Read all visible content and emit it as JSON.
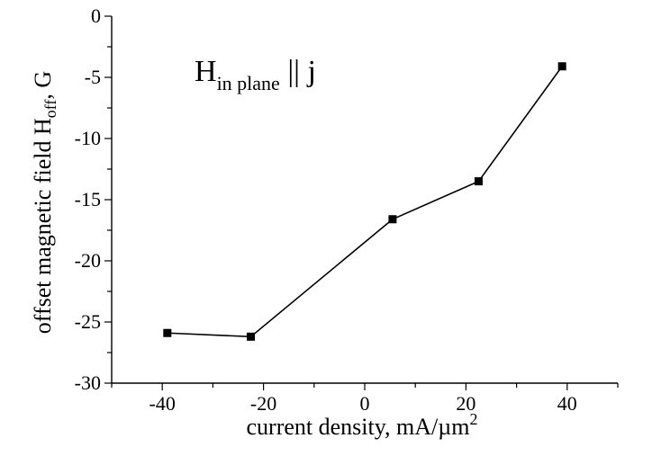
{
  "chart_data": {
    "type": "line",
    "x": [
      -39,
      -22.5,
      5.5,
      22.5,
      39
    ],
    "series": [
      {
        "values": [
          -25.9,
          -26.2,
          -16.6,
          -13.5,
          -4.1
        ]
      }
    ],
    "xlabel": "current density, mA/µm",
    "xlabel_sup": "2",
    "ylabel": "offset magnetic field H",
    "ylabel_sub": "off",
    "ylabel_suffix": ", G",
    "annotation": {
      "main": "H",
      "sub": "in plane",
      "rest": " || j"
    },
    "xlim": [
      -50,
      50
    ],
    "ylim": [
      -30,
      0
    ],
    "xticks": [
      -40,
      -20,
      0,
      20,
      40
    ],
    "yticks": [
      0,
      -5,
      -10,
      -15,
      -20,
      -25,
      -30
    ],
    "xtick_labels": [
      "-40",
      "-20",
      "0",
      "20",
      "40"
    ],
    "ytick_labels": [
      "0",
      "-5",
      "-10",
      "-15",
      "-20",
      "-25",
      "-30"
    ],
    "grid": false,
    "marker": "square",
    "line_color": "#000000"
  }
}
